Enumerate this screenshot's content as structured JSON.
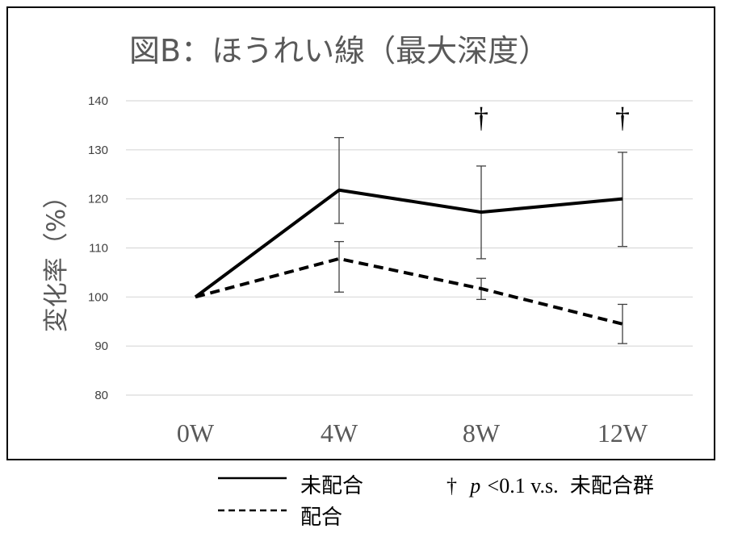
{
  "chart_data": {
    "type": "line",
    "title": "図B：ほうれい線（最大深度）",
    "xlabel": "",
    "ylabel": "変化率（%）",
    "categories": [
      "0W",
      "4W",
      "8W",
      "12W"
    ],
    "yticks": [
      "80",
      "90",
      "100",
      "110",
      "120",
      "130",
      "140"
    ],
    "ylim": [
      80,
      140
    ],
    "grid": true,
    "series": [
      {
        "name": "未配合",
        "line_style": "solid",
        "values": [
          100,
          121.8,
          117.3,
          120.0
        ],
        "error_upper": [
          100,
          132.5,
          126.7,
          129.5
        ],
        "error_lower": [
          100,
          115.0,
          107.8,
          110.3
        ]
      },
      {
        "name": "配合",
        "line_style": "dashed",
        "values": [
          100,
          107.8,
          101.7,
          94.5
        ],
        "error_upper": [
          100,
          111.3,
          103.8,
          98.5
        ],
        "error_lower": [
          100,
          101.0,
          99.5,
          90.5
        ]
      }
    ],
    "significance_markers": [
      {
        "category": "8W",
        "symbol": "†"
      },
      {
        "category": "12W",
        "symbol": "†"
      }
    ],
    "legend_placement": "bottom",
    "note": {
      "symbol": "†",
      "p": "p",
      "rest_serif": "<0.1 v.s.",
      "rest_group": "未配合群"
    },
    "colors": {
      "text": "#000000",
      "axis_text": "#595959",
      "grid": "#d9d9d9",
      "line": "#000000",
      "frame": "#000000"
    }
  }
}
